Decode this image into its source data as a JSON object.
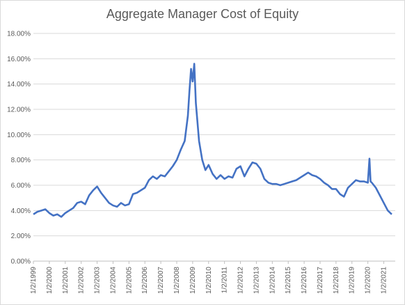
{
  "chart_data": {
    "type": "line",
    "title": "Aggregate Manager Cost of Equity",
    "xlabel": "",
    "ylabel": "",
    "ylim": [
      0,
      18
    ],
    "y_ticks": [
      "0.00%",
      "2.00%",
      "4.00%",
      "6.00%",
      "8.00%",
      "10.00%",
      "12.00%",
      "14.00%",
      "16.00%",
      "18.00%"
    ],
    "x_ticks": [
      "1/2/1999",
      "1/2/2000",
      "1/2/2001",
      "1/2/2002",
      "1/2/2003",
      "1/2/2004",
      "1/2/2005",
      "1/2/2006",
      "1/2/2007",
      "1/2/2008",
      "1/2/2009",
      "1/2/2010",
      "1/2/2011",
      "1/2/2012",
      "1/2/2013",
      "1/2/2014",
      "1/2/2015",
      "1/2/2016",
      "1/2/2017",
      "1/2/2018",
      "1/2/2019",
      "1/2/2020",
      "1/2/2021"
    ],
    "grid": "horizontal",
    "line_color": "#4472c4",
    "series": [
      {
        "name": "",
        "x": [
          1999.0,
          1999.25,
          1999.5,
          1999.75,
          2000.0,
          2000.25,
          2000.5,
          2000.75,
          2001.0,
          2001.25,
          2001.5,
          2001.75,
          2002.0,
          2002.25,
          2002.5,
          2002.75,
          2003.0,
          2003.25,
          2003.5,
          2003.75,
          2004.0,
          2004.25,
          2004.5,
          2004.75,
          2005.0,
          2005.25,
          2005.5,
          2005.75,
          2006.0,
          2006.25,
          2006.5,
          2006.75,
          2007.0,
          2007.25,
          2007.5,
          2007.75,
          2008.0,
          2008.25,
          2008.5,
          2008.7,
          2008.8,
          2008.9,
          2009.0,
          2009.1,
          2009.2,
          2009.3,
          2009.4,
          2009.6,
          2009.8,
          2010.0,
          2010.25,
          2010.5,
          2010.75,
          2011.0,
          2011.25,
          2011.5,
          2011.75,
          2012.0,
          2012.25,
          2012.5,
          2012.75,
          2013.0,
          2013.25,
          2013.5,
          2013.75,
          2014.0,
          2014.25,
          2014.5,
          2014.75,
          2015.0,
          2015.25,
          2015.5,
          2015.75,
          2016.0,
          2016.25,
          2016.5,
          2016.75,
          2017.0,
          2017.25,
          2017.5,
          2017.75,
          2018.0,
          2018.25,
          2018.5,
          2018.75,
          2019.0,
          2019.25,
          2019.5,
          2019.75,
          2020.0,
          2020.1,
          2020.17,
          2020.25,
          2020.5,
          2020.75,
          2021.0,
          2021.25,
          2021.5
        ],
        "y": [
          3.7,
          3.9,
          4.0,
          4.1,
          3.8,
          3.6,
          3.7,
          3.5,
          3.8,
          4.0,
          4.2,
          4.6,
          4.7,
          4.5,
          5.2,
          5.6,
          5.9,
          5.4,
          5.0,
          4.6,
          4.4,
          4.3,
          4.6,
          4.4,
          4.5,
          5.3,
          5.4,
          5.6,
          5.8,
          6.4,
          6.7,
          6.5,
          6.8,
          6.7,
          7.1,
          7.5,
          8.0,
          8.8,
          9.5,
          11.5,
          13.5,
          15.2,
          14.2,
          15.6,
          12.5,
          11.0,
          9.5,
          8.0,
          7.2,
          7.6,
          6.9,
          6.5,
          6.8,
          6.5,
          6.7,
          6.6,
          7.3,
          7.5,
          6.7,
          7.3,
          7.8,
          7.7,
          7.3,
          6.5,
          6.2,
          6.1,
          6.1,
          6.0,
          6.1,
          6.2,
          6.3,
          6.4,
          6.6,
          6.8,
          7.0,
          6.8,
          6.7,
          6.5,
          6.2,
          6.0,
          5.7,
          5.7,
          5.3,
          5.1,
          5.8,
          6.1,
          6.4,
          6.3,
          6.3,
          6.2,
          8.1,
          6.3,
          6.2,
          5.8,
          5.2,
          4.6,
          4.0,
          3.7
        ]
      }
    ]
  }
}
